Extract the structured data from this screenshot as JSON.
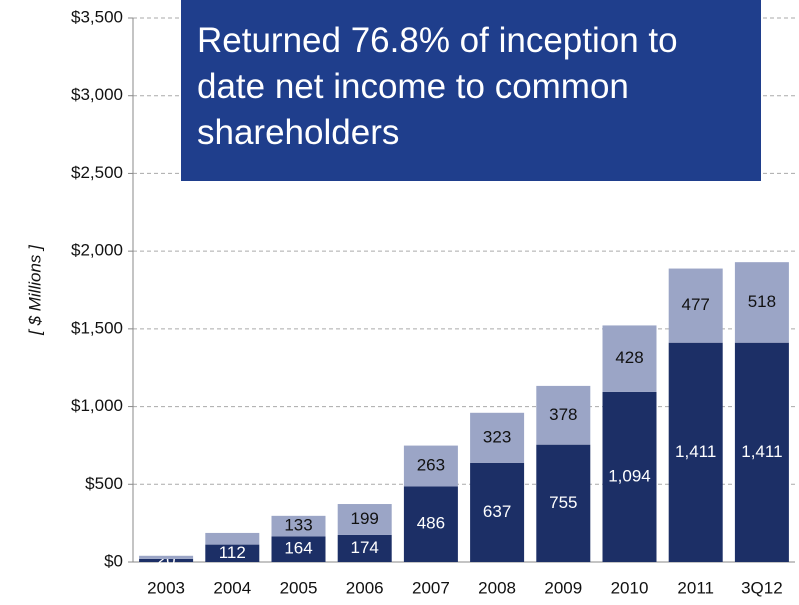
{
  "chart_data": {
    "type": "stacked_bar",
    "annotation": "Returned 76.8% of inception to date net income to common shareholders",
    "y_label": "[ $ Millions ]",
    "categories": [
      "2003",
      "2004",
      "2005",
      "2006",
      "2007",
      "2008",
      "2009",
      "2010",
      "2011",
      "3Q12"
    ],
    "series": [
      {
        "color": "#1c2f66",
        "values": [
          20,
          112,
          164,
          174,
          486,
          637,
          755,
          1094,
          1411,
          1411
        ],
        "value_labels": [
          "20",
          "112",
          "164",
          "174",
          "486",
          "637",
          "755",
          "1,094",
          "1,411",
          "1,411"
        ]
      },
      {
        "color": "#9ba5c6",
        "values": [
          20,
          75,
          133,
          199,
          263,
          323,
          378,
          428,
          477,
          518
        ],
        "value_labels": [
          null,
          null,
          "133",
          "199",
          "263",
          "323",
          "378",
          "428",
          "477",
          "518"
        ]
      }
    ],
    "ylim": [
      0,
      3500
    ],
    "yticks": [
      {
        "value": 0,
        "label": "$0"
      },
      {
        "value": 500,
        "label": "$500"
      },
      {
        "value": 1000,
        "label": "$1,000"
      },
      {
        "value": 1500,
        "label": "$1,500"
      },
      {
        "value": 2000,
        "label": "$2,000"
      },
      {
        "value": 2500,
        "label": "$2,500"
      },
      {
        "value": 3000,
        "label": "$3,000"
      },
      {
        "value": 3500,
        "label": "$3,500"
      }
    ],
    "grid": true
  }
}
